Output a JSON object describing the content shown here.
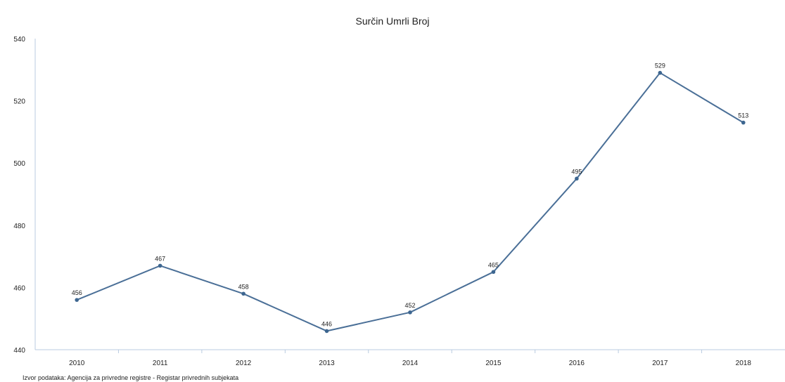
{
  "colors": {
    "line": "#4a6f97",
    "marker": "#3d6690",
    "axis": "#b9cbe0",
    "text": "#222222"
  },
  "chart_data": {
    "type": "line",
    "title": "Surčin Umrli Broj",
    "xlabel": "",
    "ylabel": "",
    "categories": [
      "2010",
      "2011",
      "2012",
      "2013",
      "2014",
      "2015",
      "2016",
      "2017",
      "2018"
    ],
    "series": [
      {
        "values": [
          456,
          467,
          458,
          446,
          452,
          465,
          495,
          529,
          513
        ]
      }
    ],
    "ylim": [
      440,
      540
    ],
    "yticks": [
      440,
      460,
      480,
      500,
      520,
      540
    ],
    "grid": false,
    "data_labels": true
  },
  "source": "Izvor podataka: Agencija za privredne registre - Registar privrednih subjekata"
}
